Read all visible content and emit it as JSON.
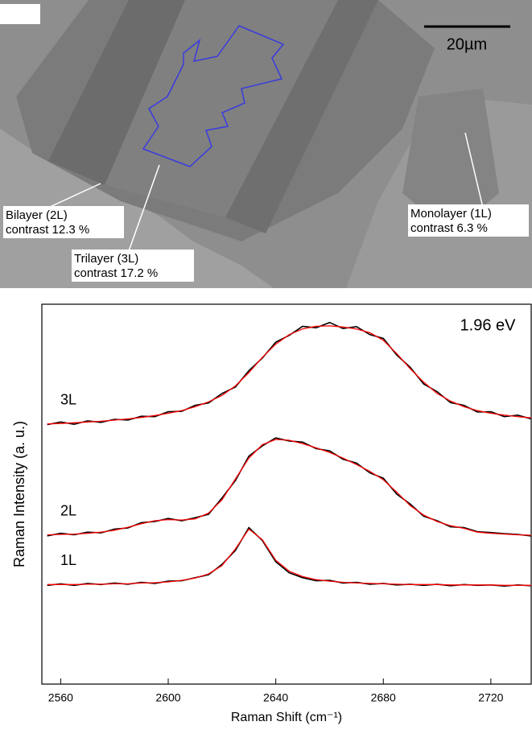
{
  "image": {
    "scale_bar": "20µm",
    "labels": [
      {
        "title": "Bilayer (2L)",
        "contrast": "contrast 12.3 %"
      },
      {
        "title": "Trilayer (3L)",
        "contrast": "contrast 17.2 %"
      },
      {
        "title": "Monolayer (1L)",
        "contrast": "contrast 6.3 %"
      }
    ]
  },
  "chart_data": {
    "type": "line",
    "x_label": "Raman Shift (cm⁻¹)",
    "y_label": "Raman Intensity (a. u.)",
    "annotation": "1.96 eV",
    "xlim": [
      2553,
      2735
    ],
    "xticks": [
      2560,
      2600,
      2640,
      2680,
      2720
    ],
    "ylim": [
      0,
      10
    ],
    "x": [
      2555,
      2560,
      2565,
      2570,
      2575,
      2580,
      2585,
      2590,
      2595,
      2600,
      2605,
      2610,
      2615,
      2620,
      2625,
      2630,
      2635,
      2640,
      2645,
      2650,
      2655,
      2660,
      2665,
      2670,
      2675,
      2680,
      2685,
      2690,
      2695,
      2700,
      2705,
      2710,
      2715,
      2720,
      2725,
      2730,
      2735
    ],
    "series": [
      {
        "name": "3L",
        "color": "#000000",
        "fit_color": "#ff0000",
        "values": [
          6.83,
          6.9,
          6.84,
          6.93,
          6.89,
          6.97,
          6.95,
          7.05,
          7.04,
          7.17,
          7.18,
          7.34,
          7.4,
          7.65,
          7.82,
          8.25,
          8.58,
          9.0,
          9.18,
          9.42,
          9.38,
          9.52,
          9.36,
          9.41,
          9.2,
          9.1,
          8.66,
          8.34,
          7.9,
          7.7,
          7.41,
          7.34,
          7.16,
          7.17,
          7.04,
          7.08,
          6.98
        ],
        "fit": [
          6.85,
          6.86,
          6.88,
          6.9,
          6.92,
          6.95,
          6.98,
          7.02,
          7.07,
          7.13,
          7.2,
          7.3,
          7.43,
          7.6,
          7.85,
          8.2,
          8.6,
          8.95,
          9.2,
          9.35,
          9.42,
          9.43,
          9.4,
          9.35,
          9.25,
          9.05,
          8.7,
          8.3,
          7.95,
          7.65,
          7.45,
          7.3,
          7.2,
          7.13,
          7.08,
          7.04,
          7.01
        ]
      },
      {
        "name": "2L",
        "color": "#000000",
        "fit_color": "#ff0000",
        "values": [
          3.9,
          3.97,
          3.93,
          4.0,
          3.98,
          4.08,
          4.11,
          4.25,
          4.28,
          4.36,
          4.3,
          4.38,
          4.47,
          4.9,
          5.36,
          6.0,
          6.27,
          6.48,
          6.4,
          6.37,
          6.2,
          6.14,
          5.92,
          5.82,
          5.56,
          5.42,
          5.0,
          4.74,
          4.42,
          4.3,
          4.14,
          4.12,
          4.01,
          3.99,
          3.96,
          3.94,
          3.9
        ],
        "fit": [
          3.93,
          3.94,
          3.95,
          3.97,
          4.0,
          4.05,
          4.13,
          4.22,
          4.3,
          4.33,
          4.32,
          4.35,
          4.5,
          4.85,
          5.4,
          5.95,
          6.3,
          6.44,
          6.42,
          6.33,
          6.22,
          6.1,
          5.95,
          5.78,
          5.6,
          5.38,
          5.05,
          4.7,
          4.45,
          4.28,
          4.17,
          4.1,
          4.0,
          3.97,
          3.95,
          3.93,
          3.92
        ]
      },
      {
        "name": "1L",
        "color": "#000000",
        "fit_color": "#ff0000",
        "values": [
          2.6,
          2.64,
          2.6,
          2.65,
          2.62,
          2.66,
          2.63,
          2.68,
          2.65,
          2.71,
          2.72,
          2.8,
          2.88,
          3.15,
          3.52,
          4.12,
          3.78,
          3.22,
          2.93,
          2.8,
          2.72,
          2.73,
          2.66,
          2.68,
          2.63,
          2.65,
          2.61,
          2.63,
          2.6,
          2.63,
          2.59,
          2.62,
          2.6,
          2.61,
          2.58,
          2.61,
          2.59
        ],
        "fit": [
          2.62,
          2.62,
          2.62,
          2.63,
          2.63,
          2.64,
          2.64,
          2.66,
          2.67,
          2.69,
          2.73,
          2.79,
          2.9,
          3.12,
          3.56,
          4.08,
          3.8,
          3.26,
          2.97,
          2.83,
          2.75,
          2.71,
          2.68,
          2.66,
          2.65,
          2.64,
          2.63,
          2.62,
          2.62,
          2.62,
          2.61,
          2.61,
          2.61,
          2.61,
          2.6,
          2.6,
          2.6
        ]
      }
    ]
  }
}
